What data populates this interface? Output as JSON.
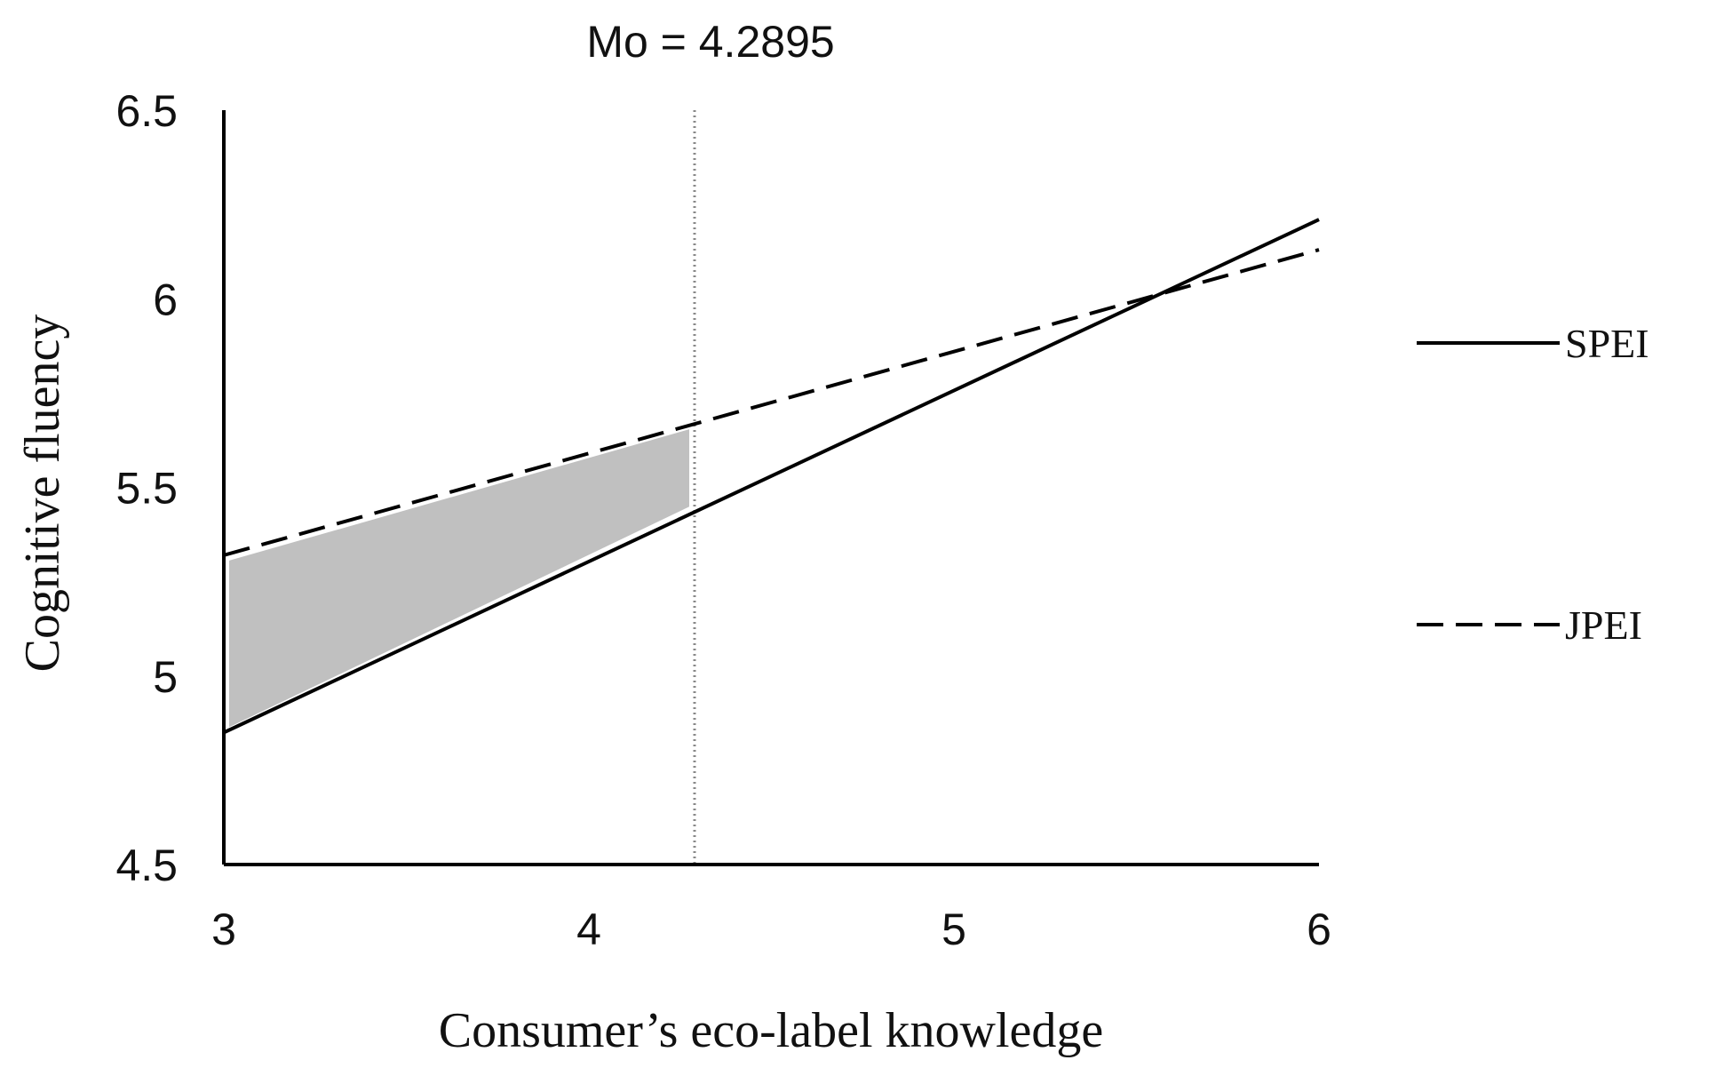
{
  "chart_data": {
    "type": "line",
    "xlabel": "Consumer’s eco-label knowledge",
    "ylabel": "Cognitive fluency",
    "xlim": [
      3,
      6
    ],
    "ylim": [
      4.5,
      6.5
    ],
    "x_ticks": [
      "3",
      "4",
      "5",
      "6"
    ],
    "y_ticks": [
      "4.5",
      "5",
      "5.5",
      "6",
      "6.5"
    ],
    "grid": false,
    "legend_position": "right",
    "series": [
      {
        "name": "SPEI",
        "style": "solid",
        "color": "#000000",
        "x": [
          3,
          6
        ],
        "y": [
          4.85,
          6.21
        ]
      },
      {
        "name": "JPEI",
        "style": "dashed",
        "color": "#000000",
        "x": [
          3,
          6
        ],
        "y": [
          5.32,
          6.13
        ]
      }
    ],
    "annotations": [
      {
        "type": "vertical-line",
        "style": "dotted",
        "color": "#888888",
        "x": 4.2895,
        "label": "Mo = 4.2895"
      },
      {
        "type": "shaded-region",
        "color": "#c0c0c0",
        "between": [
          "JPEI",
          "SPEI"
        ],
        "x_range": [
          3,
          4.2895
        ]
      }
    ]
  }
}
